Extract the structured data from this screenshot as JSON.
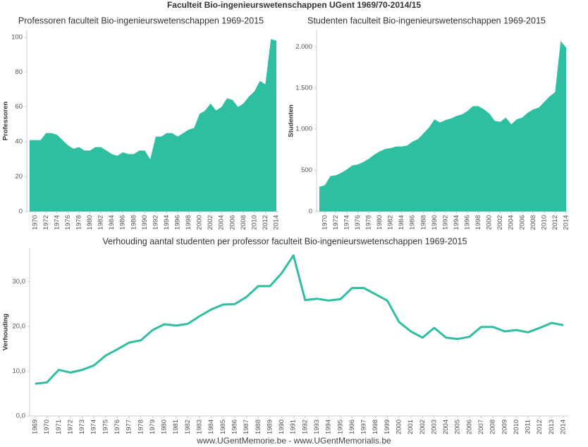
{
  "title": "Faculteit Bio-ingenieurswetenschappen UGent 1969/70-2014/15",
  "footer": "www.UGentMemorie.be - www.UGentMemorialis.be",
  "chart_data": [
    {
      "type": "area",
      "title": "Professoren faculteit Bio-ingenieurswetenschappen 1969-2015",
      "ylabel": "Professoren",
      "color": "#2ebfa0",
      "grid": false,
      "x": [
        1969,
        1970,
        1971,
        1972,
        1973,
        1974,
        1975,
        1976,
        1977,
        1978,
        1979,
        1980,
        1981,
        1982,
        1983,
        1984,
        1985,
        1986,
        1987,
        1988,
        1989,
        1990,
        1991,
        1992,
        1993,
        1994,
        1995,
        1996,
        1997,
        1998,
        1999,
        2000,
        2001,
        2002,
        2003,
        2004,
        2005,
        2006,
        2007,
        2008,
        2009,
        2010,
        2011,
        2012,
        2013,
        2014
      ],
      "values": [
        41,
        41,
        41,
        45,
        45,
        44,
        41,
        38,
        36,
        37,
        35,
        35,
        37,
        37,
        35,
        33,
        32,
        34,
        33,
        33,
        35,
        35,
        30,
        43,
        43,
        45,
        45,
        43,
        45,
        47,
        48,
        56,
        58,
        62,
        58,
        60,
        65,
        64,
        60,
        62,
        66,
        69,
        75,
        73,
        99,
        98
      ],
      "xlim": [
        1969,
        2014
      ],
      "xticks": [
        1970,
        1972,
        1974,
        1976,
        1978,
        1980,
        1982,
        1984,
        1986,
        1988,
        1990,
        1992,
        1994,
        1996,
        1998,
        2000,
        2002,
        2004,
        2006,
        2008,
        2010,
        2012,
        2014
      ],
      "ylim": [
        0,
        104
      ],
      "yticks": [
        0,
        20,
        40,
        60,
        80,
        100
      ]
    },
    {
      "type": "area",
      "title": "Studenten faculteit Bio-ingenieurswetenschappen 1969-2015",
      "ylabel": "Studenten",
      "color": "#2ebfa0",
      "grid": false,
      "x": [
        1969,
        1970,
        1971,
        1972,
        1973,
        1974,
        1975,
        1976,
        1977,
        1978,
        1979,
        1980,
        1981,
        1982,
        1983,
        1984,
        1985,
        1986,
        1987,
        1988,
        1989,
        1990,
        1991,
        1992,
        1993,
        1994,
        1995,
        1996,
        1997,
        1998,
        1999,
        2000,
        2001,
        2002,
        2003,
        2004,
        2005,
        2006,
        2007,
        2008,
        2009,
        2010,
        2011,
        2012,
        2013,
        2014
      ],
      "values": [
        300,
        320,
        430,
        440,
        470,
        510,
        560,
        570,
        600,
        640,
        690,
        730,
        760,
        770,
        790,
        790,
        800,
        850,
        880,
        950,
        1020,
        1120,
        1080,
        1110,
        1130,
        1160,
        1180,
        1220,
        1280,
        1280,
        1240,
        1190,
        1100,
        1090,
        1140,
        1060,
        1120,
        1140,
        1200,
        1240,
        1260,
        1330,
        1400,
        1450,
        2070,
        1990
      ],
      "xlim": [
        1969,
        2014
      ],
      "xticks": [
        1970,
        1972,
        1974,
        1976,
        1978,
        1980,
        1982,
        1984,
        1986,
        1988,
        1990,
        1992,
        1994,
        1996,
        1998,
        2000,
        2002,
        2004,
        2006,
        2008,
        2010,
        2012,
        2014
      ],
      "ylim": [
        0,
        2200
      ],
      "yticks": [
        0,
        500,
        {
          "value": 1000,
          "label": "1.000"
        },
        {
          "value": 1500,
          "label": "1.500"
        },
        {
          "value": 2000,
          "label": "2.000"
        }
      ]
    },
    {
      "type": "line",
      "title": "Verhouding aantal studenten per professor faculteit Bio-ingenieurswetenschappen 1969-2015",
      "ylabel": "Verhouding",
      "color": "#2ebfa0",
      "grid": false,
      "x": [
        1969,
        1970,
        1971,
        1972,
        1973,
        1974,
        1975,
        1976,
        1977,
        1978,
        1979,
        1980,
        1981,
        1982,
        1983,
        1984,
        1985,
        1986,
        1987,
        1988,
        1989,
        1990,
        1991,
        1992,
        1993,
        1994,
        1995,
        1996,
        1997,
        1998,
        1999,
        2000,
        2001,
        2002,
        2003,
        2004,
        2005,
        2006,
        2007,
        2008,
        2009,
        2010,
        2011,
        2012,
        2013,
        2014
      ],
      "values": [
        7.2,
        7.5,
        10.3,
        9.7,
        10.3,
        11.3,
        13.5,
        14.9,
        16.4,
        16.9,
        19.2,
        20.5,
        20.2,
        20.6,
        22.3,
        23.8,
        24.9,
        25,
        26.6,
        29,
        29,
        31.9,
        35.9,
        25.9,
        26.2,
        25.8,
        26.1,
        28.6,
        28.6,
        27.2,
        25.8,
        21,
        18.9,
        17.5,
        19.7,
        17.5,
        17.2,
        17.7,
        19.9,
        19.9,
        18.9,
        19.2,
        18.7,
        19.7,
        20.8,
        20.3
      ],
      "xlim": [
        1969,
        2014
      ],
      "xticks": [
        1969,
        1970,
        1971,
        1972,
        1973,
        1974,
        1975,
        1976,
        1977,
        1978,
        1979,
        1980,
        1981,
        1982,
        1983,
        1984,
        1985,
        1986,
        1987,
        1988,
        1989,
        1990,
        1991,
        1992,
        1993,
        1994,
        1995,
        1996,
        1997,
        1998,
        1999,
        2000,
        2001,
        2002,
        2003,
        2004,
        2005,
        2006,
        2007,
        2008,
        2009,
        2010,
        2011,
        2012,
        2013,
        2014
      ],
      "ylim": [
        0,
        37.5
      ],
      "yticks": [
        {
          "value": 0,
          "label": "0,0"
        },
        {
          "value": 10,
          "label": "10,0"
        },
        {
          "value": 20,
          "label": "20,0"
        },
        {
          "value": 30,
          "label": "30,0"
        }
      ]
    }
  ]
}
